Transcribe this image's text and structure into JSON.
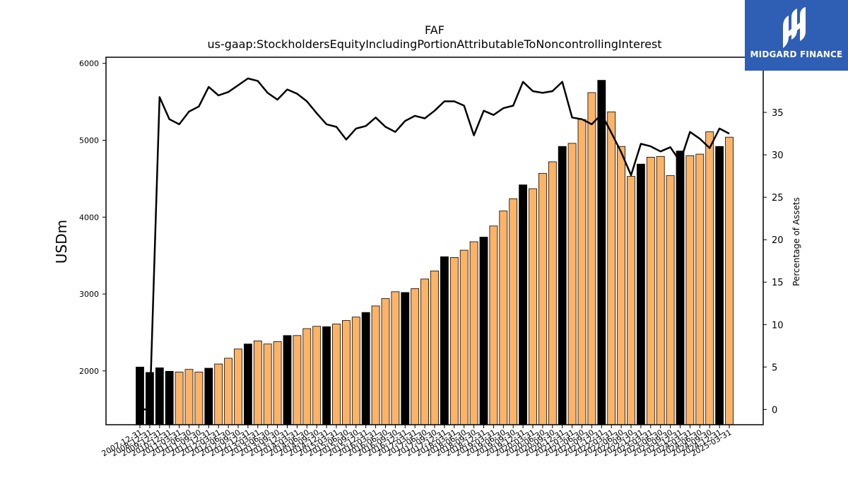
{
  "logo": {
    "text": "MIDGARD FINANCE",
    "background": "#2f5eb5"
  },
  "chart_data": {
    "type": "bar",
    "title": "FAF",
    "subtitle": "us-gaap:StockholdersEquityIncludingPortionAttributableToNoncontrollingInterest",
    "ylabel": "USDm",
    "y2label": "Percentage of Assets",
    "ylim": [
      1300,
      6080
    ],
    "y2lim": [
      -1.8,
      41.5
    ],
    "yticks": [
      2000,
      3000,
      4000,
      5000,
      6000
    ],
    "y2ticks": [
      0,
      5,
      10,
      15,
      20,
      25,
      30,
      35
    ],
    "colors": {
      "annual": "#000000",
      "quarterly": "#fdb366",
      "line": "#000000"
    },
    "categories": [
      "2007-12-31",
      "2008-12-31",
      "2009-12-31",
      "2010-12-31",
      "2011-03-31",
      "2011-06-30",
      "2011-09-30",
      "2011-12-31",
      "2012-03-31",
      "2012-06-30",
      "2012-09-30",
      "2012-12-31",
      "2013-03-31",
      "2013-06-30",
      "2013-09-30",
      "2013-12-31",
      "2014-03-31",
      "2014-06-30",
      "2014-09-30",
      "2014-12-31",
      "2015-03-31",
      "2015-06-30",
      "2015-09-30",
      "2015-12-31",
      "2016-03-31",
      "2016-06-30",
      "2016-09-30",
      "2016-12-31",
      "2017-03-31",
      "2017-06-30",
      "2017-09-30",
      "2017-12-31",
      "2018-03-31",
      "2018-06-30",
      "2018-09-30",
      "2018-12-31",
      "2019-03-31",
      "2019-06-30",
      "2019-09-30",
      "2019-12-31",
      "2020-03-31",
      "2020-06-30",
      "2020-09-30",
      "2020-12-31",
      "2021-03-31",
      "2021-06-30",
      "2021-09-30",
      "2021-12-31",
      "2022-03-31",
      "2022-06-30",
      "2022-09-30",
      "2022-12-31",
      "2023-03-31",
      "2023-06-30",
      "2023-09-30",
      "2023-12-31",
      "2024-03-31",
      "2024-06-30",
      "2024-09-30",
      "2024-12-31",
      "2025-03-31"
    ],
    "annual_flags": [
      1,
      1,
      1,
      1,
      0,
      0,
      0,
      1,
      0,
      0,
      0,
      1,
      0,
      0,
      0,
      1,
      0,
      0,
      0,
      1,
      0,
      0,
      0,
      1,
      0,
      0,
      0,
      1,
      0,
      0,
      0,
      1,
      0,
      0,
      0,
      1,
      0,
      0,
      0,
      1,
      0,
      0,
      0,
      1,
      0,
      0,
      0,
      1,
      0,
      0,
      0,
      1,
      0,
      0,
      0,
      1,
      0,
      0,
      0,
      1,
      0
    ],
    "series": [
      {
        "name": "Equity",
        "values": [
          2050,
          1980,
          2040,
          1995,
          1985,
          2020,
          1985,
          2035,
          2090,
          2165,
          2285,
          2350,
          2390,
          2350,
          2380,
          2460,
          2460,
          2550,
          2580,
          2575,
          2610,
          2655,
          2700,
          2760,
          2845,
          2940,
          3030,
          3020,
          3070,
          3195,
          3300,
          3485,
          3475,
          3570,
          3680,
          3740,
          3885,
          4080,
          4240,
          4420,
          4370,
          4570,
          4720,
          4920,
          4960,
          5270,
          5620,
          5780,
          5370,
          4920,
          4530,
          4690,
          4780,
          4790,
          4540,
          4860,
          4800,
          4820,
          5110,
          4920,
          5040
        ]
      },
      {
        "name": "Percentage of Assets",
        "axis": "y2",
        "values": [
          0.0,
          0.0,
          36.8,
          34.2,
          33.6,
          35.1,
          35.7,
          38.0,
          37.0,
          37.4,
          38.2,
          39.0,
          38.7,
          37.3,
          36.5,
          37.7,
          37.2,
          36.3,
          34.9,
          33.6,
          33.3,
          31.8,
          33.1,
          33.4,
          34.4,
          33.3,
          32.7,
          34.0,
          34.6,
          34.3,
          35.2,
          36.3,
          36.3,
          35.8,
          32.3,
          35.2,
          34.7,
          35.5,
          35.8,
          38.6,
          37.5,
          37.3,
          37.5,
          38.6,
          34.4,
          34.2,
          33.6,
          34.8,
          32.6,
          30.3,
          27.6,
          31.3,
          31.0,
          30.4,
          30.9,
          29.2,
          32.7,
          31.9,
          30.8,
          33.1,
          32.5
        ]
      }
    ],
    "grid": false,
    "legend": "none"
  }
}
